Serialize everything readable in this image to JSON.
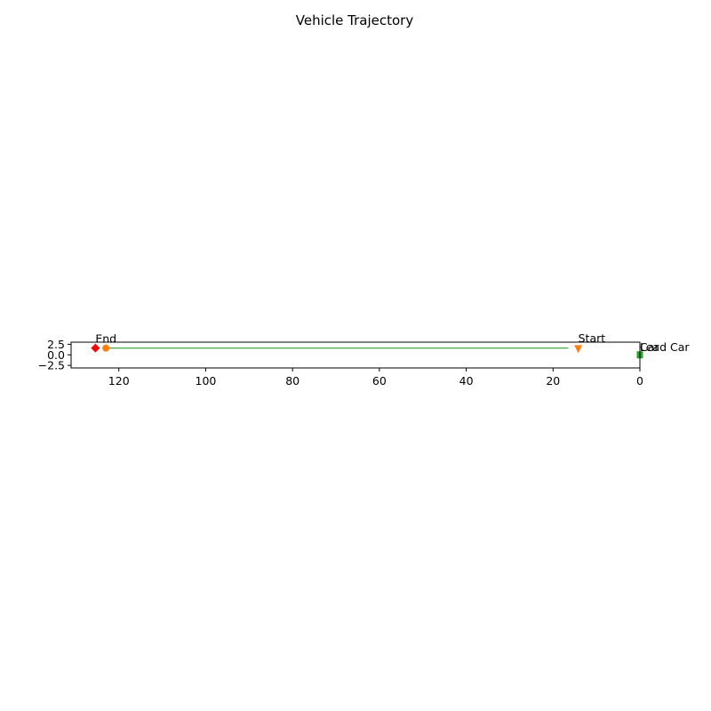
{
  "chart_data": {
    "type": "scatter",
    "title": "Vehicle Trajectory",
    "xlabel": "",
    "ylabel": "",
    "xlim": [
      131,
      0
    ],
    "ylim": [
      -3.1,
      3.0
    ],
    "x_inverted": true,
    "x_ticks": [
      120,
      100,
      80,
      60,
      40,
      20,
      0
    ],
    "x_tick_labels": [
      "120",
      "100",
      "80",
      "60",
      "40",
      "20",
      "0"
    ],
    "y_ticks": [
      2.5,
      0.0,
      -2.5
    ],
    "y_tick_labels": [
      "2.5",
      "0.0",
      "−2.5"
    ],
    "grid": false,
    "trajectory": {
      "color": "#2ca02c",
      "x": [
        16.5,
        123.2
      ],
      "y": [
        1.6,
        1.6
      ]
    },
    "markers": [
      {
        "kind": "start",
        "x": 14.2,
        "y": 1.35,
        "shape": "triangle-down",
        "color": "#ff7f0e"
      },
      {
        "kind": "end",
        "x": 123.0,
        "y": 1.6,
        "shape": "circle",
        "color": "#ff7f0e"
      },
      {
        "kind": "end",
        "x": 125.4,
        "y": 1.6,
        "shape": "diamond",
        "color": "#ff0000"
      },
      {
        "kind": "car",
        "x": 0.0,
        "y": 0.0,
        "shape": "square",
        "color": "#2ca02c"
      }
    ],
    "annotations": [
      {
        "text": "End",
        "x": 125.4,
        "y": 2.9
      },
      {
        "text": "Start",
        "x": 14.2,
        "y": 3.0
      },
      {
        "text": "Lead Car",
        "x": 0.0,
        "y": 0.85
      },
      {
        "text": "Car",
        "x": 0.0,
        "y": 0.85
      }
    ]
  }
}
